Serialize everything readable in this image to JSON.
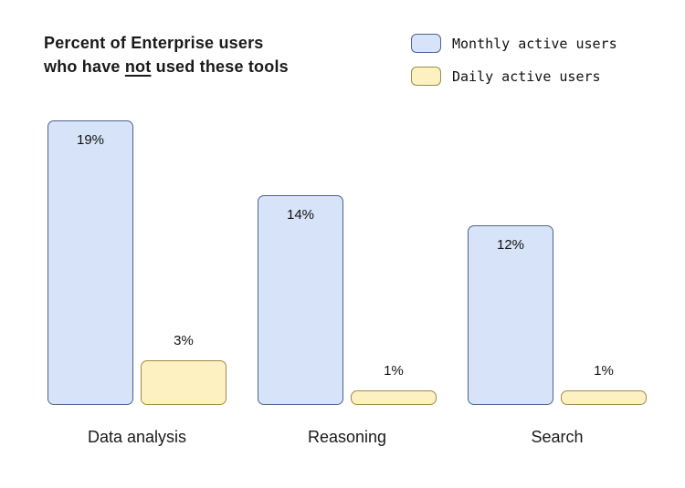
{
  "title": {
    "line1": "Percent of Enterprise users",
    "line2_prefix": "who have ",
    "line2_underlined": "not",
    "line2_suffix": " used these tools"
  },
  "legend": {
    "items": [
      {
        "label": "Monthly active users"
      },
      {
        "label": "Daily active users"
      }
    ]
  },
  "colors": {
    "monthly_fill": "#d6e3f8",
    "monthly_border": "#4e648f",
    "daily_fill": "#fdf1c2",
    "daily_border": "#9d8c4d",
    "text": "#1a1a1a"
  },
  "chart_data": {
    "type": "bar",
    "title": "Percent of Enterprise users who have not used these tools",
    "categories": [
      "Data analysis",
      "Reasoning",
      "Search"
    ],
    "series": [
      {
        "name": "Monthly active users",
        "values": [
          19,
          14,
          12
        ],
        "fill": "#d6e3f8",
        "border": "#4e648f"
      },
      {
        "name": "Daily active users",
        "values": [
          3,
          1,
          1
        ],
        "fill": "#fdf1c2",
        "border": "#9d8c4d"
      }
    ],
    "value_label_format": "{v}%",
    "ylim": [
      0,
      20
    ],
    "grid": false,
    "axes_visible": false,
    "legend_position": "top-right"
  }
}
